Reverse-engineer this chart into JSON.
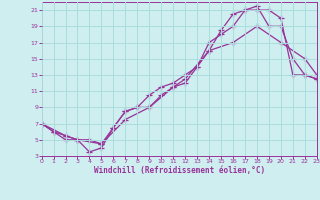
{
  "xlabel": "Windchill (Refroidissement éolien,°C)",
  "xlim": [
    0,
    23
  ],
  "ylim": [
    3,
    22
  ],
  "xticks": [
    0,
    1,
    2,
    3,
    4,
    5,
    6,
    7,
    8,
    9,
    10,
    11,
    12,
    13,
    14,
    15,
    16,
    17,
    18,
    19,
    20,
    21,
    22,
    23
  ],
  "yticks": [
    3,
    5,
    7,
    9,
    11,
    13,
    15,
    17,
    19,
    21
  ],
  "bg_color": "#ceeef0",
  "grid_color": "#aadddd",
  "line_color": "#993399",
  "line1_x": [
    0,
    1,
    2,
    3,
    4,
    5,
    6,
    7,
    8,
    9,
    10,
    11,
    12,
    13,
    14,
    15,
    16,
    17,
    18,
    19,
    20,
    21,
    22,
    23
  ],
  "line1_y": [
    7,
    6,
    5.5,
    5,
    3.5,
    4,
    6.5,
    8.5,
    9,
    10.5,
    11.5,
    12,
    13,
    14,
    17,
    18,
    19,
    21,
    21.5,
    19,
    19,
    15,
    13,
    12.5
  ],
  "line2_x": [
    0,
    1,
    2,
    3,
    4,
    5,
    6,
    7,
    8,
    9,
    10,
    11,
    12,
    13,
    14,
    15,
    16,
    17,
    18,
    19,
    20,
    21,
    22,
    23
  ],
  "line2_y": [
    7,
    6,
    5,
    5,
    5,
    4.5,
    6.5,
    8.5,
    9,
    9,
    10.5,
    11.5,
    12,
    14,
    16,
    18.5,
    20.5,
    21,
    21,
    21,
    20,
    13,
    13,
    12.5
  ],
  "line3_x": [
    0,
    2,
    3,
    5,
    7,
    9,
    11,
    12,
    14,
    16,
    18,
    20,
    22,
    23
  ],
  "line3_y": [
    7,
    5.5,
    5,
    4.5,
    7.5,
    9,
    11.5,
    12.5,
    16,
    17,
    19,
    17,
    15,
    13
  ],
  "marker": "+",
  "markersize": 4,
  "linewidth": 0.9
}
